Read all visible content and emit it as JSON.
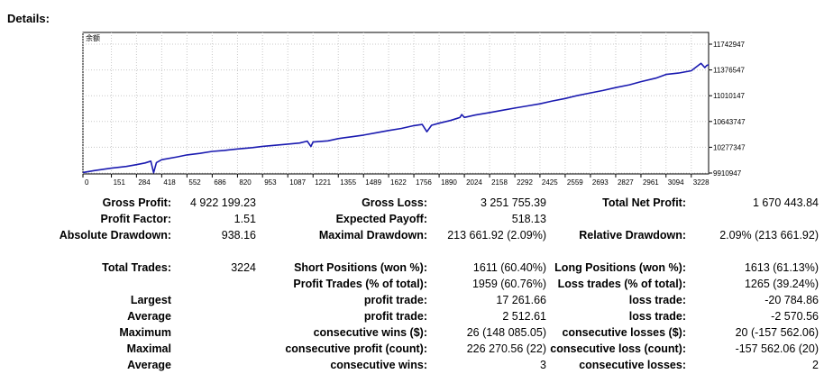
{
  "header": {
    "title": "Details:"
  },
  "chart_data": {
    "type": "line",
    "corner_label": "余额",
    "x_ticks": [
      "0",
      "151",
      "284",
      "418",
      "552",
      "686",
      "820",
      "953",
      "1087",
      "1221",
      "1355",
      "1489",
      "1622",
      "1756",
      "1890",
      "2024",
      "2158",
      "2292",
      "2425",
      "2559",
      "2693",
      "2827",
      "2961",
      "3094",
      "3228"
    ],
    "y_ticks": [
      "11742947",
      "11376547",
      "11010147",
      "10643747",
      "10277347",
      "9910947"
    ],
    "xlim": [
      0,
      3320
    ],
    "ylim": [
      9910947,
      11742947
    ],
    "series": [
      {
        "color": "#1a1ab0",
        "x": [
          0,
          60,
          151,
          230,
          284,
          330,
          360,
          375,
          390,
          418,
          500,
          552,
          620,
          686,
          750,
          820,
          900,
          953,
          1020,
          1087,
          1150,
          1190,
          1210,
          1221,
          1300,
          1355,
          1420,
          1489,
          1560,
          1622,
          1690,
          1756,
          1800,
          1825,
          1850,
          1890,
          1950,
          2000,
          2010,
          2024,
          2080,
          2158,
          2220,
          2292,
          2360,
          2425,
          2490,
          2559,
          2620,
          2693,
          2760,
          2827,
          2900,
          2961,
          3040,
          3094,
          3160,
          3228,
          3280,
          3300,
          3310,
          3320
        ],
        "y": [
          9918000,
          9945000,
          9980000,
          10005000,
          10030000,
          10055000,
          10080000,
          9915000,
          10060000,
          10100000,
          10140000,
          10168000,
          10190000,
          10218000,
          10232000,
          10253000,
          10272000,
          10290000,
          10306000,
          10322000,
          10338000,
          10365000,
          10288000,
          10352000,
          10368000,
          10400000,
          10425000,
          10450000,
          10485000,
          10515000,
          10545000,
          10585000,
          10602000,
          10498000,
          10590000,
          10620000,
          10658000,
          10700000,
          10742000,
          10702000,
          10735000,
          10770000,
          10800000,
          10835000,
          10865000,
          10895000,
          10935000,
          10970000,
          11010000,
          11050000,
          11085000,
          11125000,
          11165000,
          11210000,
          11260000,
          11312000,
          11332000,
          11365000,
          11470000,
          11410000,
          11440000,
          11450000
        ]
      }
    ]
  },
  "stats": {
    "row1": {
      "gross_profit_label": "Gross Profit:",
      "gross_profit": "4 922 199.23",
      "gross_loss_label": "Gross Loss:",
      "gross_loss": "3 251 755.39",
      "total_net_profit_label": "Total Net Profit:",
      "total_net_profit": "1 670 443.84"
    },
    "row2": {
      "profit_factor_label": "Profit Factor:",
      "profit_factor": "1.51",
      "expected_payoff_label": "Expected Payoff:",
      "expected_payoff": "518.13"
    },
    "row3": {
      "absolute_drawdown_label": "Absolute Drawdown:",
      "absolute_drawdown": "938.16",
      "maximal_drawdown_label": "Maximal Drawdown:",
      "maximal_drawdown": "213 661.92 (2.09%)",
      "relative_drawdown_label": "Relative Drawdown:",
      "relative_drawdown": "2.09% (213 661.92)"
    },
    "row4": {
      "total_trades_label": "Total Trades:",
      "total_trades": "3224",
      "short_positions_label": "Short Positions (won %):",
      "short_positions": "1611 (60.40%)",
      "long_positions_label": "Long Positions (won %):",
      "long_positions": "1613 (61.13%)"
    },
    "row5": {
      "profit_trades_label": "Profit Trades (% of total):",
      "profit_trades": "1959 (60.76%)",
      "loss_trades_label": "Loss trades (% of total):",
      "loss_trades": "1265 (39.24%)"
    },
    "row6": {
      "label": "Largest",
      "profit_label": "profit trade:",
      "profit": "17 261.66",
      "loss_label": "loss trade:",
      "loss": "-20 784.86"
    },
    "row7": {
      "label": "Average",
      "profit_label": "profit trade:",
      "profit": "2 512.61",
      "loss_label": "loss trade:",
      "loss": "-2 570.56"
    },
    "row8": {
      "label": "Maximum",
      "profit_label": "consecutive wins ($):",
      "profit": "26 (148 085.05)",
      "loss_label": "consecutive losses ($):",
      "loss": "20 (-157 562.06)"
    },
    "row9": {
      "label": "Maximal",
      "profit_label": "consecutive profit (count):",
      "profit": "226 270.56 (22)",
      "loss_label": "consecutive loss (count):",
      "loss": "-157 562.06 (20)"
    },
    "row10": {
      "label": "Average",
      "profit_label": "consecutive wins:",
      "profit": "3",
      "loss_label": "consecutive losses:",
      "loss": "2"
    }
  }
}
